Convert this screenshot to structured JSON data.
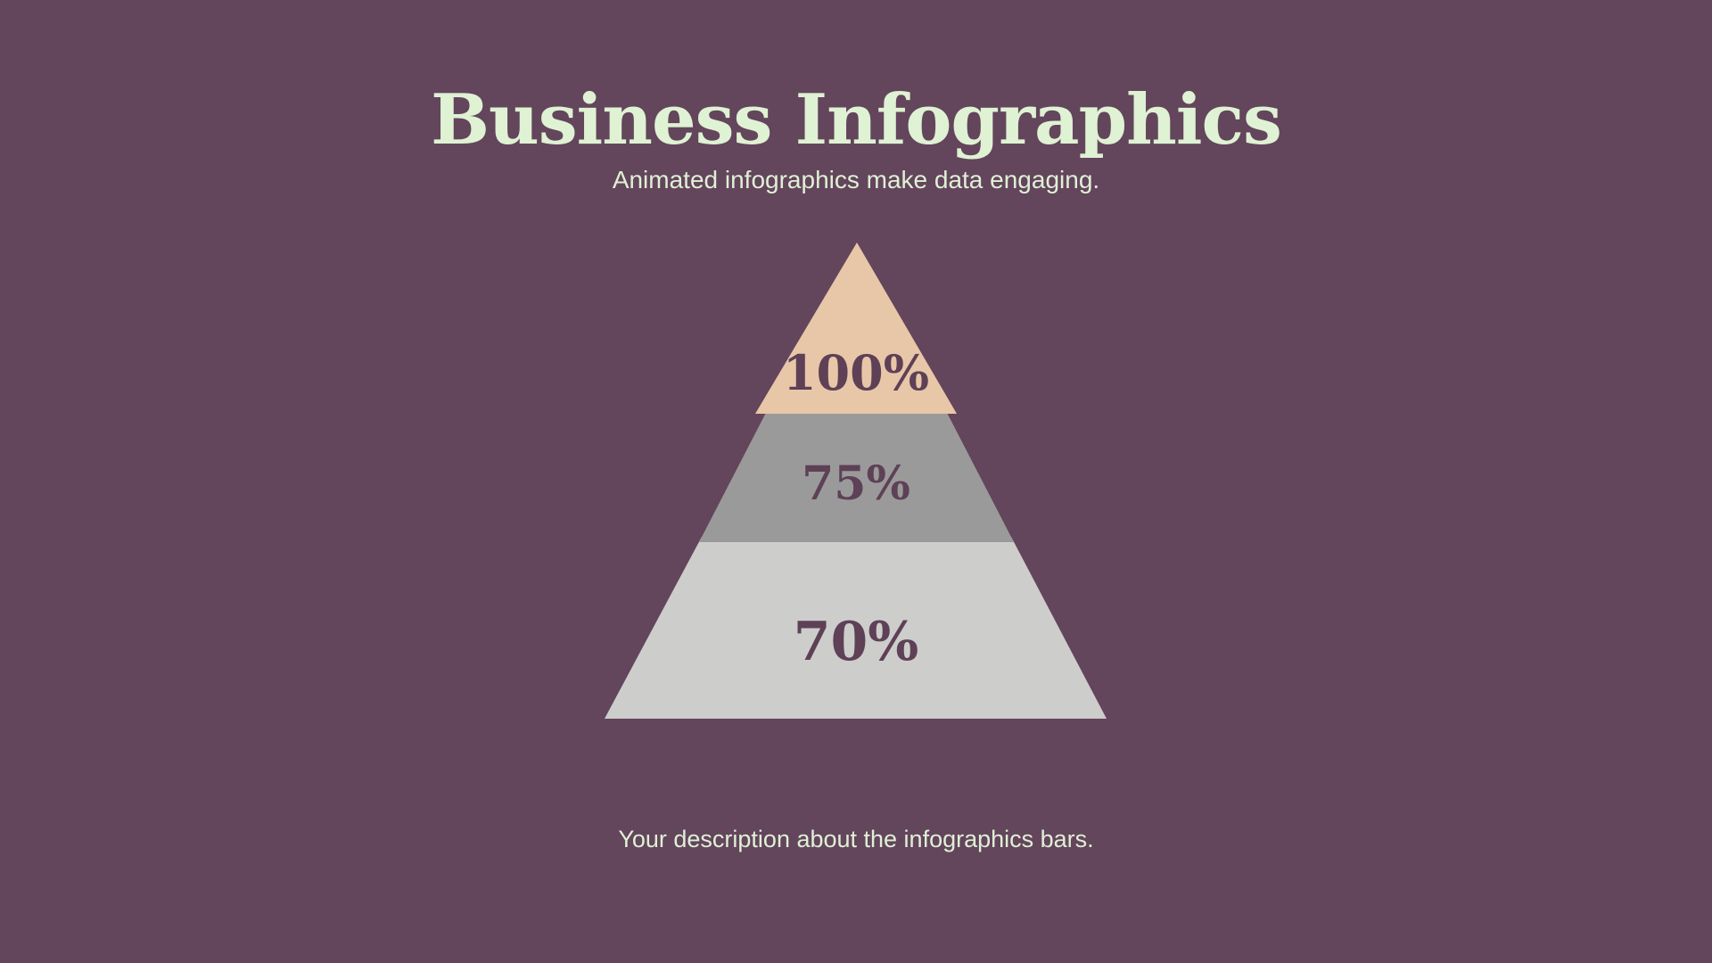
{
  "page": {
    "background_color": "#63455c"
  },
  "header": {
    "title": "Business Infographics",
    "subtitle": "Animated infographics make data engaging.",
    "title_color": "#dff2d4"
  },
  "footer": {
    "caption": "Your description about the infographics bars."
  },
  "chart_data": {
    "type": "pyramid",
    "title": "Business Infographics",
    "subtitle": "Animated infographics make data engaging.",
    "caption": "Your description about the infographics bars.",
    "orientation": "top-to-bottom",
    "legend": false,
    "label_text_color": "#5e4156",
    "levels": [
      {
        "label": "100%",
        "value": 100,
        "color": "#e8c7a8"
      },
      {
        "label": "75%",
        "value": 75,
        "color": "#9a9a9a"
      },
      {
        "label": "70%",
        "value": 70,
        "color": "#cdcdcc"
      }
    ]
  }
}
